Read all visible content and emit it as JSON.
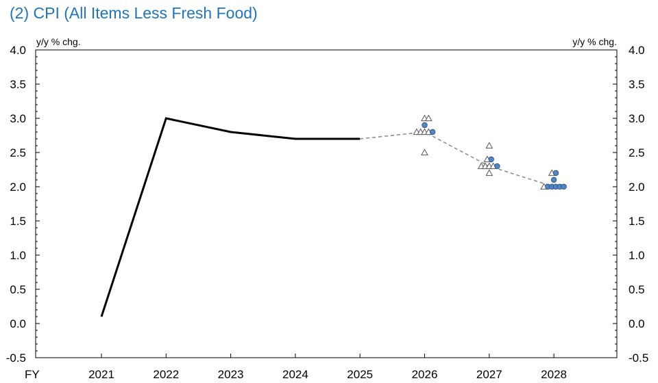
{
  "title": "(2) CPI (All Items Less Fresh Food)",
  "chart_data": {
    "type": "line",
    "title": "(2) CPI (All Items Less Fresh Food)",
    "ylabel_left": "y/y % chg.",
    "ylabel_right": "y/y % chg.",
    "xlabel": "FY",
    "categories": [
      "2021",
      "2022",
      "2023",
      "2024",
      "2025",
      "2026",
      "2027",
      "2028"
    ],
    "ylim": [
      -0.5,
      4.0
    ],
    "yticks": [
      "4.0",
      "3.5",
      "3.0",
      "2.5",
      "2.0",
      "1.5",
      "1.0",
      "0.5",
      "0.0",
      "-0.5"
    ],
    "grid": false,
    "colors": {
      "title": "#1f74bf",
      "actual_line": "#000000",
      "median_line": "#888888",
      "circle_fill": "#4f86c6",
      "triangle_stroke": "#555555"
    },
    "series": [
      {
        "values": [
          0.1,
          3.0,
          2.8,
          2.7,
          2.7,
          null,
          null,
          null
        ]
      },
      {
        "values": [
          null,
          null,
          null,
          null,
          2.7,
          2.8,
          2.3,
          2.0
        ]
      }
    ],
    "projections": [
      {
        "fy": "2026",
        "triangles": [
          {
            "offset": 0,
            "value": 3.0
          },
          {
            "offset": 1,
            "value": 3.0
          },
          {
            "offset": -2,
            "value": 2.8
          },
          {
            "offset": -1,
            "value": 2.8
          },
          {
            "offset": 0,
            "value": 2.8
          },
          {
            "offset": 1,
            "value": 2.8
          },
          {
            "offset": 0,
            "value": 2.5
          }
        ],
        "circles": [
          {
            "offset": 0,
            "value": 2.9
          },
          {
            "offset": 2,
            "value": 2.8
          }
        ]
      },
      {
        "fy": "2027",
        "triangles": [
          {
            "offset": 0,
            "value": 2.6
          },
          {
            "offset": -0.5,
            "value": 2.4
          },
          {
            "offset": -2,
            "value": 2.3
          },
          {
            "offset": -1,
            "value": 2.3
          },
          {
            "offset": 0,
            "value": 2.3
          },
          {
            "offset": 1,
            "value": 2.3
          },
          {
            "offset": 0,
            "value": 2.2
          }
        ],
        "circles": [
          {
            "offset": 0.5,
            "value": 2.4
          },
          {
            "offset": 2,
            "value": 2.3
          }
        ]
      },
      {
        "fy": "2028",
        "triangles": [
          {
            "offset": -0.5,
            "value": 2.2
          },
          {
            "offset": -2.5,
            "value": 2.0
          }
        ],
        "circles": [
          {
            "offset": 0.5,
            "value": 2.2
          },
          {
            "offset": 0,
            "value": 2.1
          },
          {
            "offset": -1.5,
            "value": 2.0
          },
          {
            "offset": -0.5,
            "value": 2.0
          },
          {
            "offset": 0.5,
            "value": 2.0
          },
          {
            "offset": 1.5,
            "value": 2.0
          },
          {
            "offset": 2.5,
            "value": 2.0
          }
        ]
      }
    ]
  }
}
